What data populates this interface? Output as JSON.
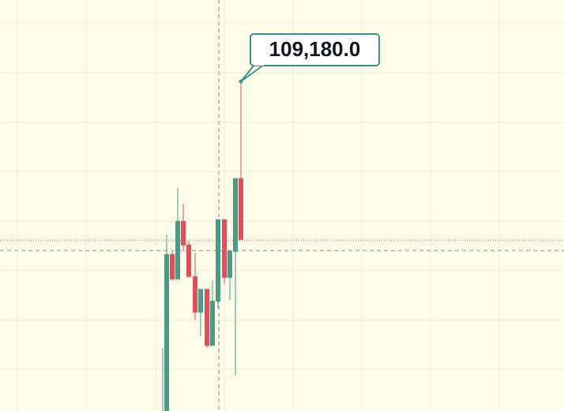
{
  "price_label": "109,180.0"
}
